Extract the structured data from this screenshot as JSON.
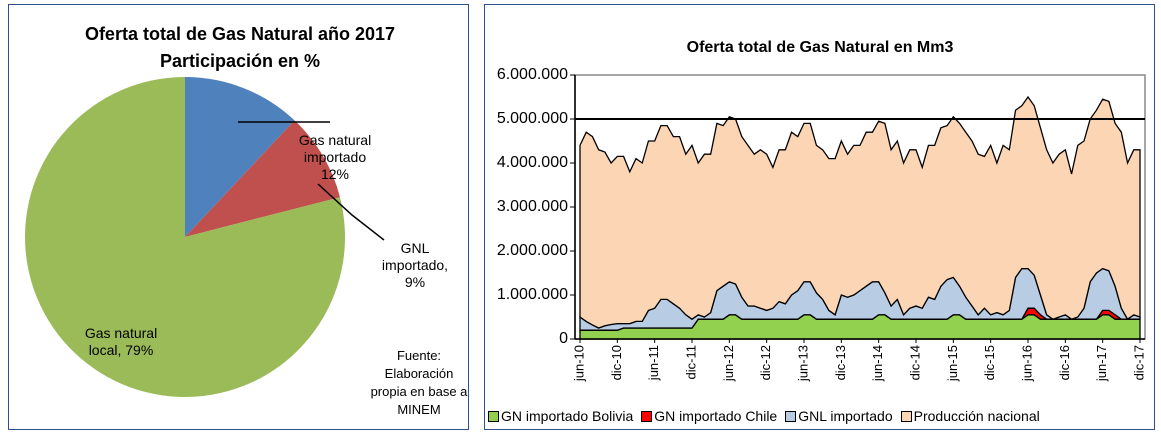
{
  "chart_data": [
    {
      "type": "pie",
      "title": "Oferta total de Gas Natural año 2017",
      "subtitle": "Participación en %",
      "categories": [
        "Gas natural importado",
        "GNL importado,",
        "Gas natural local,"
      ],
      "values": [
        12,
        9,
        79
      ],
      "value_labels": [
        "12%",
        "9%",
        "79%"
      ],
      "colors": [
        "#4f81bd",
        "#c0504d",
        "#9bbb59"
      ],
      "annotation": "Fuente: Elaboración propia en base a MINEM"
    },
    {
      "type": "stacked_area",
      "title": "Oferta total de Gas Natural en Mm3",
      "categories": [
        "jun-10",
        null,
        null,
        null,
        null,
        null,
        "dic-10",
        null,
        null,
        null,
        null,
        null,
        "jun-11",
        null,
        null,
        null,
        null,
        null,
        "dic-11",
        null,
        null,
        null,
        null,
        null,
        "jun-12",
        null,
        null,
        null,
        null,
        null,
        "dic-12",
        null,
        null,
        null,
        null,
        null,
        "jun-13",
        null,
        null,
        null,
        null,
        null,
        "dic-13",
        null,
        null,
        null,
        null,
        null,
        "jun-14",
        null,
        null,
        null,
        null,
        null,
        "dic-14",
        null,
        null,
        null,
        null,
        null,
        "jun-15",
        null,
        null,
        null,
        null,
        null,
        "dic-15",
        null,
        null,
        null,
        null,
        null,
        "jun-16",
        null,
        null,
        null,
        null,
        null,
        "dic-16",
        null,
        null,
        null,
        null,
        null,
        "jun-17",
        null,
        null,
        null,
        null,
        null,
        "dic-17"
      ],
      "ylim": [
        0,
        6000000
      ],
      "yticks": [
        0,
        {
          "value": 1000000,
          "label": "1.000.000"
        },
        {
          "value": 2000000,
          "label": "2.000.000"
        },
        {
          "value": 3000000,
          "label": "3.000.000"
        },
        {
          "value": 4000000,
          "label": "4.000.000"
        },
        {
          "value": 5000000,
          "label": "5.000.000"
        },
        {
          "value": 6000000,
          "label": "6.000.000"
        }
      ],
      "reference_line": 5000000,
      "grid": false,
      "legend": "bottom",
      "series": [
        {
          "name": "GN importado Bolivia",
          "color": "#92d050",
          "values": [
            200000,
            200000,
            200000,
            200000,
            200000,
            200000,
            200000,
            250000,
            250000,
            250000,
            250000,
            250000,
            250000,
            250000,
            250000,
            250000,
            250000,
            250000,
            250000,
            450000,
            450000,
            450000,
            450000,
            450000,
            550000,
            550000,
            450000,
            450000,
            450000,
            450000,
            450000,
            450000,
            450000,
            450000,
            450000,
            450000,
            550000,
            550000,
            450000,
            450000,
            450000,
            450000,
            450000,
            450000,
            450000,
            450000,
            450000,
            450000,
            550000,
            550000,
            450000,
            450000,
            450000,
            450000,
            450000,
            450000,
            450000,
            450000,
            450000,
            450000,
            550000,
            550000,
            450000,
            450000,
            450000,
            450000,
            450000,
            450000,
            450000,
            450000,
            450000,
            450000,
            550000,
            550000,
            450000,
            450000,
            450000,
            450000,
            450000,
            450000,
            450000,
            450000,
            450000,
            450000,
            550000,
            550000,
            450000,
            450000,
            450000,
            450000,
            450000
          ]
        },
        {
          "name": "GN importado Chile",
          "color": "#ff0000",
          "values": [
            0,
            0,
            0,
            0,
            0,
            0,
            0,
            0,
            0,
            0,
            0,
            0,
            0,
            0,
            0,
            0,
            0,
            0,
            0,
            0,
            0,
            0,
            0,
            0,
            0,
            0,
            0,
            0,
            0,
            0,
            0,
            0,
            0,
            0,
            0,
            0,
            0,
            0,
            0,
            0,
            0,
            0,
            0,
            0,
            0,
            0,
            0,
            0,
            0,
            0,
            0,
            0,
            0,
            0,
            0,
            0,
            0,
            0,
            0,
            0,
            0,
            0,
            0,
            0,
            0,
            0,
            0,
            0,
            0,
            0,
            0,
            0,
            150000,
            150000,
            100000,
            0,
            0,
            0,
            0,
            0,
            0,
            0,
            0,
            0,
            100000,
            100000,
            100000,
            0,
            0,
            0,
            0
          ]
        },
        {
          "name": "GNL importado",
          "color": "#b8cce4",
          "values": [
            300000,
            200000,
            120000,
            50000,
            100000,
            130000,
            150000,
            100000,
            100000,
            150000,
            150000,
            400000,
            450000,
            650000,
            650000,
            550000,
            450000,
            300000,
            200000,
            100000,
            50000,
            150000,
            650000,
            750000,
            750000,
            700000,
            500000,
            300000,
            300000,
            250000,
            200000,
            250000,
            400000,
            350000,
            550000,
            650000,
            750000,
            750000,
            600000,
            450000,
            200000,
            100000,
            550000,
            500000,
            550000,
            650000,
            750000,
            850000,
            750000,
            500000,
            300000,
            450000,
            100000,
            250000,
            300000,
            250000,
            500000,
            450000,
            750000,
            900000,
            850000,
            650000,
            500000,
            300000,
            100000,
            250000,
            100000,
            150000,
            100000,
            200000,
            950000,
            1150000,
            900000,
            750000,
            450000,
            100000,
            0,
            50000,
            100000,
            0,
            50000,
            250000,
            850000,
            1050000,
            950000,
            900000,
            650000,
            250000,
            0,
            100000,
            50000
          ]
        },
        {
          "name": "Producción nacional",
          "color": "#fcd5b5",
          "values": [
            3900000,
            4300000,
            4280000,
            4050000,
            3950000,
            3670000,
            3800000,
            3800000,
            3450000,
            3700000,
            3600000,
            3850000,
            3800000,
            3950000,
            3950000,
            3800000,
            3900000,
            3650000,
            3950000,
            3450000,
            3700000,
            3600000,
            3800000,
            3650000,
            3750000,
            3750000,
            3650000,
            3650000,
            3450000,
            3600000,
            3550000,
            3200000,
            3450000,
            3500000,
            3700000,
            3500000,
            3600000,
            3600000,
            3350000,
            3400000,
            3450000,
            3550000,
            3500000,
            3250000,
            3400000,
            3300000,
            3500000,
            3400000,
            3650000,
            3850000,
            3550000,
            3600000,
            3450000,
            3600000,
            3550000,
            3200000,
            3450000,
            3500000,
            3600000,
            3500000,
            3650000,
            3700000,
            3750000,
            3750000,
            3650000,
            3450000,
            3850000,
            3400000,
            3850000,
            3650000,
            3800000,
            3700000,
            3900000,
            3850000,
            3800000,
            3750000,
            3550000,
            3700000,
            3750000,
            3300000,
            3900000,
            3800000,
            3700000,
            3700000,
            3850000,
            3850000,
            3700000,
            4000000,
            3550000,
            3750000,
            3800000
          ]
        }
      ]
    }
  ]
}
